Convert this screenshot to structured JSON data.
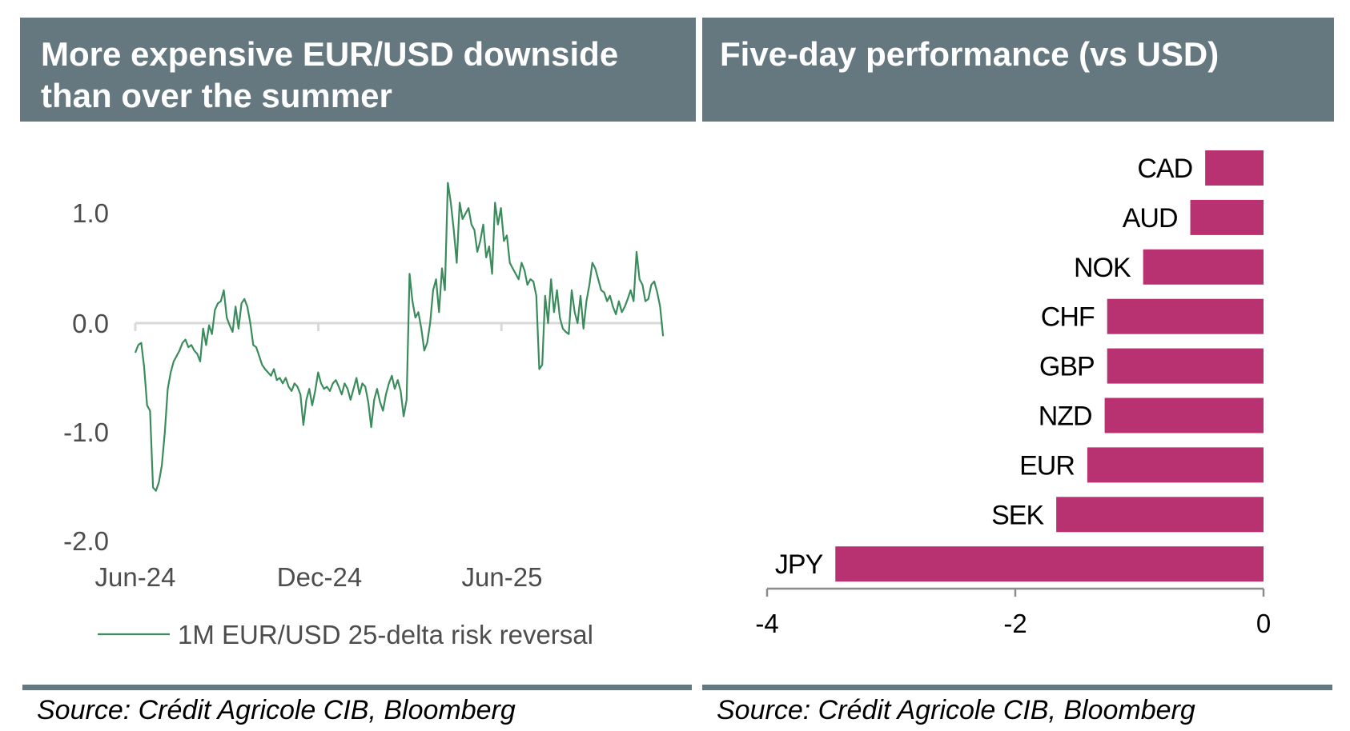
{
  "panels": {
    "left": {
      "title_line1": "More expensive EUR/USD downside",
      "title_line2": "than over the summer",
      "source": "Source: Crédit Agricole CIB, Bloomberg"
    },
    "right": {
      "title": "Five-day performance (vs USD)",
      "source": "Source: Crédit Agricole CIB, Bloomberg"
    }
  },
  "colors": {
    "header_bg": "#66787f",
    "line": "#3a8c5c",
    "bar": "#b83272",
    "axis": "#d9d9d9"
  },
  "chart_data": [
    {
      "type": "line",
      "title": "More expensive EUR/USD downside than over the summer",
      "xlabel": "",
      "ylabel": "",
      "x_unit": "months since Jun-24",
      "x_tick_labels": [
        "Jun-24",
        "Dec-24",
        "Jun-25"
      ],
      "x_tick_positions": [
        0,
        6,
        12
      ],
      "xlim": [
        0,
        17.3
      ],
      "y_tick_labels": [
        "1.0",
        "0.0",
        "-1.0",
        "-2.0"
      ],
      "y_tick_values": [
        1.0,
        0.0,
        -1.0,
        -2.0
      ],
      "ylim": [
        -2.0,
        1.3
      ],
      "legend": "bottom",
      "grid": false,
      "series": [
        {
          "name": "1M EUR/USD 25-delta risk reversal",
          "x_step": 0.1,
          "values": [
            -0.27,
            -0.2,
            -0.18,
            -0.4,
            -0.75,
            -0.8,
            -1.5,
            -1.53,
            -1.45,
            -1.3,
            -1.0,
            -0.6,
            -0.45,
            -0.35,
            -0.3,
            -0.25,
            -0.18,
            -0.15,
            -0.22,
            -0.2,
            -0.25,
            -0.28,
            -0.35,
            -0.05,
            -0.2,
            -0.02,
            -0.1,
            0.12,
            0.18,
            0.2,
            0.3,
            0.05,
            -0.02,
            -0.08,
            0.15,
            -0.05,
            0.18,
            0.22,
            0.15,
            0.0,
            -0.2,
            -0.22,
            -0.3,
            -0.38,
            -0.42,
            -0.45,
            -0.48,
            -0.42,
            -0.52,
            -0.5,
            -0.55,
            -0.5,
            -0.58,
            -0.62,
            -0.55,
            -0.58,
            -0.65,
            -0.93,
            -0.7,
            -0.6,
            -0.75,
            -0.62,
            -0.45,
            -0.55,
            -0.6,
            -0.58,
            -0.62,
            -0.55,
            -0.52,
            -0.58,
            -0.65,
            -0.55,
            -0.6,
            -0.7,
            -0.6,
            -0.5,
            -0.65,
            -0.55,
            -0.58,
            -0.72,
            -0.95,
            -0.7,
            -0.6,
            -0.72,
            -0.8,
            -0.65,
            -0.55,
            -0.48,
            -0.6,
            -0.52,
            -0.62,
            -0.85,
            -0.7,
            0.45,
            0.2,
            0.05,
            0.1,
            -0.05,
            -0.25,
            -0.18,
            0.0,
            0.3,
            0.4,
            0.1,
            0.5,
            0.3,
            1.28,
            1.1,
            0.85,
            0.55,
            1.1,
            0.95,
            1.0,
            1.05,
            0.9,
            0.85,
            0.65,
            0.75,
            0.9,
            0.6,
            0.7,
            0.45,
            1.1,
            0.9,
            1.05,
            0.75,
            0.8,
            0.55,
            0.5,
            0.45,
            0.4,
            0.55,
            0.48,
            0.35,
            0.4,
            0.38,
            0.25,
            -0.42,
            -0.38,
            0.25,
            0.0,
            0.4,
            0.1,
            0.3,
            0.05,
            -0.05,
            -0.08,
            -0.1,
            0.3,
            0.1,
            0.0,
            0.25,
            -0.05,
            0.2,
            0.35,
            0.55,
            0.5,
            0.4,
            0.3,
            0.28,
            0.2,
            0.25,
            0.15,
            0.08,
            0.2,
            0.1,
            0.15,
            0.22,
            0.3,
            0.2,
            0.65,
            0.4,
            0.35,
            0.2,
            0.22,
            0.35,
            0.38,
            0.28,
            0.15,
            -0.12
          ]
        }
      ]
    },
    {
      "type": "bar",
      "orientation": "horizontal",
      "title": "Five-day performance (vs USD)",
      "xlabel": "",
      "ylabel": "",
      "categories": [
        "CAD",
        "AUD",
        "NOK",
        "CHF",
        "GBP",
        "NZD",
        "EUR",
        "SEK",
        "JPY"
      ],
      "values": [
        -0.47,
        -0.59,
        -0.97,
        -1.26,
        -1.26,
        -1.28,
        -1.42,
        -1.67,
        -3.45
      ],
      "x_tick_labels": [
        "-4",
        "-2",
        "0"
      ],
      "x_tick_values": [
        -4,
        -2,
        0
      ],
      "xlim": [
        -4,
        0
      ],
      "grid": false
    }
  ]
}
